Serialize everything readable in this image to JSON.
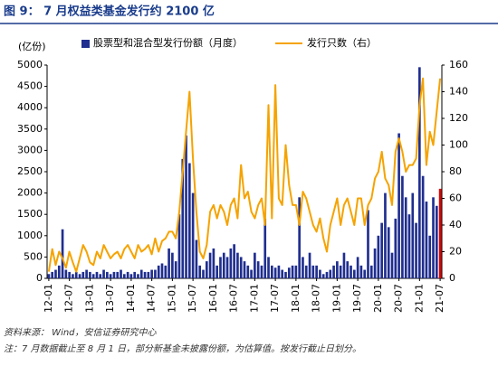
{
  "chart_data": {
    "type": "bar_line",
    "title": "图 9：  7 月权益类基金发行约 2100 亿",
    "y_label": "(亿份)",
    "source": "资料来源： Wind，安信证券研究中心",
    "note": "注：7 月数据截止至 8 月 1 日，部分新基金未披露份额，为估算值。按发行截止日划分。",
    "categories": [
      "12-01",
      null,
      null,
      null,
      null,
      null,
      "12-07",
      null,
      null,
      null,
      null,
      null,
      "13-01",
      null,
      null,
      null,
      null,
      null,
      "13-07",
      null,
      null,
      null,
      null,
      null,
      "14-01",
      null,
      null,
      null,
      null,
      null,
      "14-07",
      null,
      null,
      null,
      null,
      null,
      "15-01",
      null,
      null,
      null,
      null,
      null,
      "15-07",
      null,
      null,
      null,
      null,
      null,
      "16-01",
      null,
      null,
      null,
      null,
      null,
      "16-07",
      null,
      null,
      null,
      null,
      null,
      "17-01",
      null,
      null,
      null,
      null,
      null,
      "17-07",
      null,
      null,
      null,
      null,
      null,
      "18-01",
      null,
      null,
      null,
      null,
      null,
      "18-07",
      null,
      null,
      null,
      null,
      null,
      "19-01",
      null,
      null,
      null,
      null,
      null,
      "19-07",
      null,
      null,
      null,
      null,
      null,
      "20-01",
      null,
      null,
      null,
      null,
      null,
      "20-07",
      null,
      null,
      null,
      null,
      null,
      "21-01",
      null,
      null,
      null,
      null,
      null,
      "21-07"
    ],
    "series": [
      {
        "name": "股票型和混合型发行份额（月度）",
        "type": "bar",
        "color": "#1f2e8f",
        "last_color": "#e00000",
        "values": [
          100,
          150,
          200,
          300,
          1150,
          200,
          150,
          100,
          150,
          100,
          150,
          200,
          150,
          100,
          150,
          100,
          200,
          150,
          100,
          150,
          150,
          200,
          100,
          150,
          100,
          150,
          100,
          200,
          150,
          150,
          200,
          200,
          300,
          350,
          300,
          700,
          600,
          400,
          1500,
          2800,
          3350,
          2700,
          2000,
          900,
          300,
          200,
          400,
          600,
          700,
          300,
          500,
          600,
          500,
          700,
          800,
          600,
          500,
          400,
          300,
          200,
          600,
          400,
          300,
          1400,
          500,
          300,
          250,
          300,
          200,
          150,
          250,
          300,
          300,
          1900,
          500,
          300,
          600,
          300,
          300,
          200,
          100,
          150,
          200,
          300,
          400,
          300,
          600,
          400,
          300,
          200,
          500,
          300,
          200,
          1600,
          300,
          700,
          1000,
          1300,
          2000,
          1200,
          600,
          1400,
          3400,
          2400,
          1900,
          1500,
          2000,
          1300,
          4950,
          2400,
          1800,
          1000,
          1900,
          1700,
          2100
        ]
      },
      {
        "name": "发行只数（右）",
        "type": "line",
        "axis": "y2",
        "color": "#f5a300",
        "values": [
          5,
          22,
          10,
          20,
          15,
          8,
          20,
          12,
          5,
          15,
          25,
          20,
          12,
          10,
          20,
          15,
          25,
          20,
          15,
          18,
          20,
          15,
          22,
          25,
          20,
          15,
          25,
          20,
          22,
          25,
          18,
          30,
          20,
          28,
          30,
          35,
          35,
          30,
          50,
          80,
          110,
          140,
          90,
          50,
          20,
          15,
          25,
          50,
          55,
          45,
          55,
          50,
          40,
          55,
          60,
          45,
          85,
          60,
          65,
          50,
          45,
          55,
          60,
          40,
          130,
          45,
          145,
          60,
          55,
          100,
          70,
          55,
          55,
          40,
          65,
          60,
          50,
          40,
          35,
          45,
          30,
          20,
          40,
          50,
          60,
          40,
          55,
          60,
          50,
          40,
          60,
          60,
          40,
          55,
          60,
          75,
          80,
          95,
          75,
          70,
          55,
          95,
          105,
          95,
          80,
          85,
          85,
          90,
          130,
          150,
          85,
          110,
          100,
          125,
          150
        ]
      }
    ],
    "ylim": [
      0,
      5000
    ],
    "yticks": [
      0,
      500,
      1000,
      1500,
      2000,
      2500,
      3000,
      3500,
      4000,
      4500,
      5000
    ],
    "y2lim": [
      0,
      160
    ],
    "y2ticks": [
      0,
      20,
      40,
      60,
      80,
      100,
      120,
      140,
      160
    ]
  }
}
